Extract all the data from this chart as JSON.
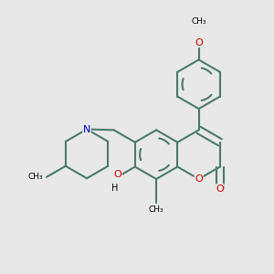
{
  "bg": "#e8e8e8",
  "bc": "#4a7a6a",
  "bw": 1.5,
  "red": "#cc0000",
  "blue": "#0000cc",
  "black": "#000000",
  "dpi": 100,
  "figsize": [
    3.0,
    3.0
  ],
  "xlim": [
    -1.55,
    1.55
  ],
  "ylim": [
    -1.55,
    1.55
  ],
  "bl": 0.28,
  "afs": 8.0,
  "sfs": 6.5
}
